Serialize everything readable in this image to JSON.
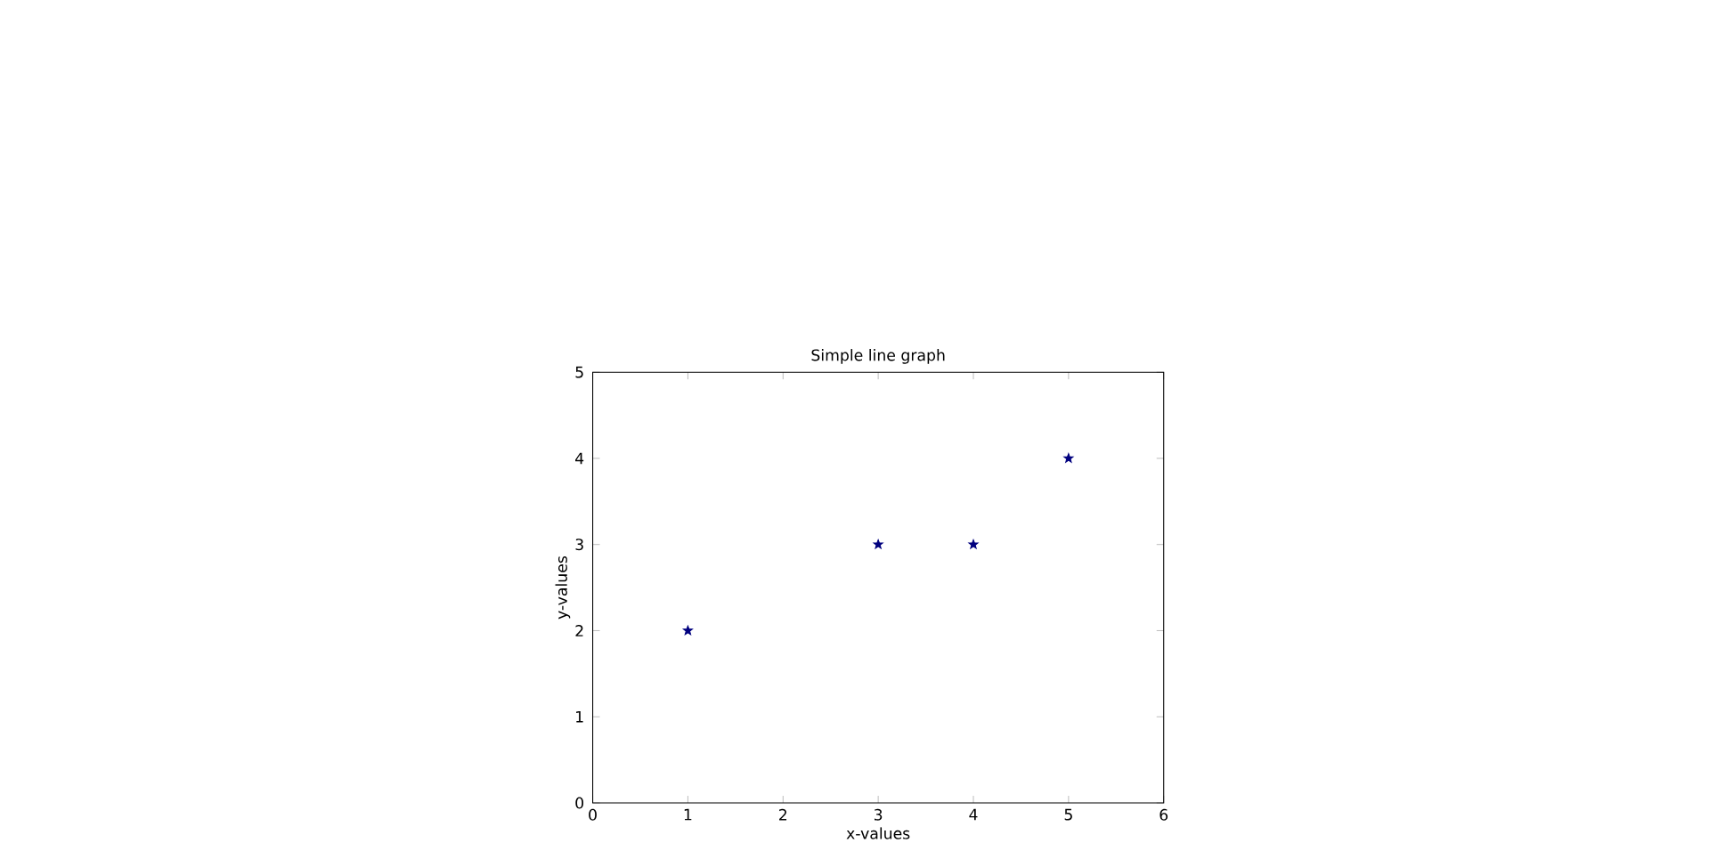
{
  "chart_data": {
    "type": "scatter",
    "title": "Simple line graph",
    "xlabel": "x-values",
    "ylabel": "y-values",
    "x": [
      1,
      3,
      4,
      5
    ],
    "values": [
      2,
      3,
      3,
      4
    ],
    "color": "#00007f",
    "marker": "star",
    "xlim": [
      0,
      6
    ],
    "ylim": [
      0,
      5
    ],
    "xticks": [
      0,
      1,
      2,
      3,
      4,
      5,
      6
    ],
    "yticks": [
      0,
      1,
      2,
      3,
      4,
      5
    ],
    "grid": false
  }
}
